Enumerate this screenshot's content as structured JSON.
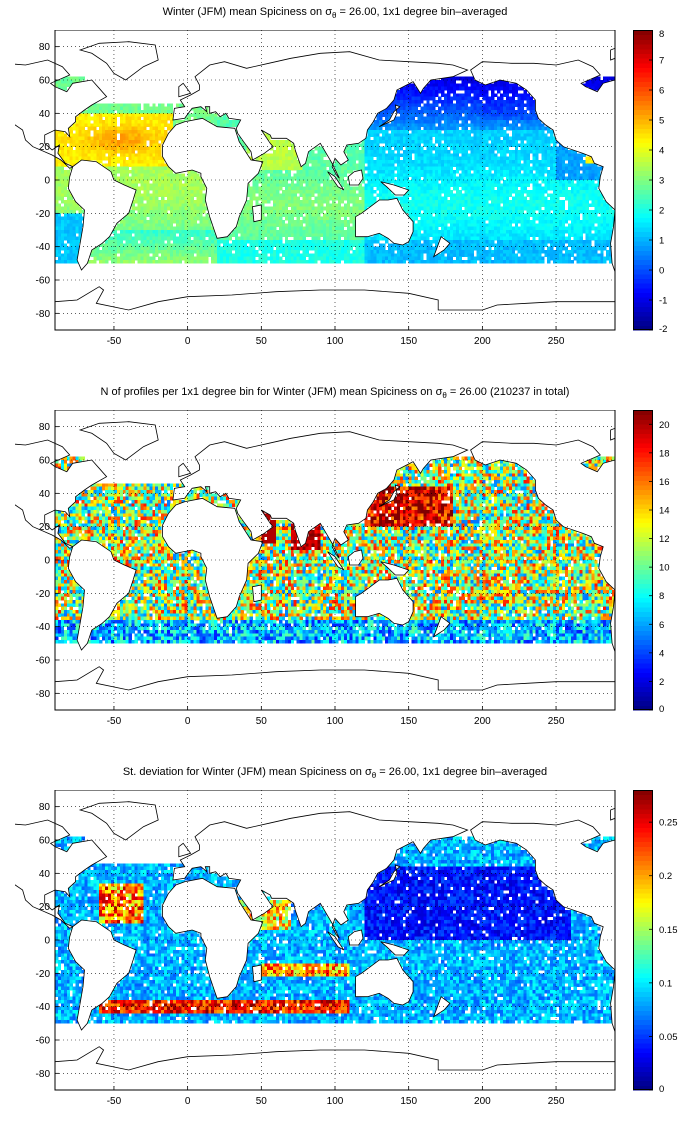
{
  "figure": {
    "panels": [
      {
        "id": "mean",
        "title_prefix": "Winter (JFM) mean Spiciness on ",
        "title_sigma": "σ",
        "title_sub": "θ",
        "title_suffix": " = 26.00, 1x1 degree bin–averaged",
        "colorbar": {
          "min": -2,
          "max": 8,
          "ticks": [
            -2,
            -1,
            0,
            1,
            2,
            3,
            4,
            5,
            6,
            7,
            8
          ]
        }
      },
      {
        "id": "count",
        "title_prefix": "N of profiles per 1x1 degree bin for Winter (JFM) mean Spiciness on ",
        "title_sigma": "σ",
        "title_sub": "θ",
        "title_suffix": " = 26.00 (210237 in total)",
        "colorbar": {
          "min": 0,
          "max": 21,
          "ticks": [
            0,
            2,
            4,
            6,
            8,
            10,
            12,
            14,
            16,
            18,
            20
          ]
        }
      },
      {
        "id": "stdev",
        "title_prefix": "St. deviation for Winter (JFM) mean Spiciness on ",
        "title_sigma": "σ",
        "title_sub": "θ",
        "title_suffix": " = 26.00, 1x1 degree bin–averaged",
        "colorbar": {
          "min": 0,
          "max": 0.28,
          "ticks": [
            0,
            0.05,
            0.1,
            0.15,
            0.2,
            0.25
          ]
        }
      }
    ],
    "x_axis": {
      "min": -90,
      "max": 290,
      "ticks": [
        -50,
        0,
        50,
        100,
        150,
        200,
        250
      ]
    },
    "y_axis": {
      "min": -90,
      "max": 90,
      "ticks": [
        -80,
        -60,
        -40,
        -20,
        0,
        20,
        40,
        60,
        80
      ]
    },
    "grid": "dotted",
    "colormap": "jet",
    "colors": {
      "land": "#ffffff",
      "coast": "#000000",
      "frame": "#000000"
    }
  }
}
